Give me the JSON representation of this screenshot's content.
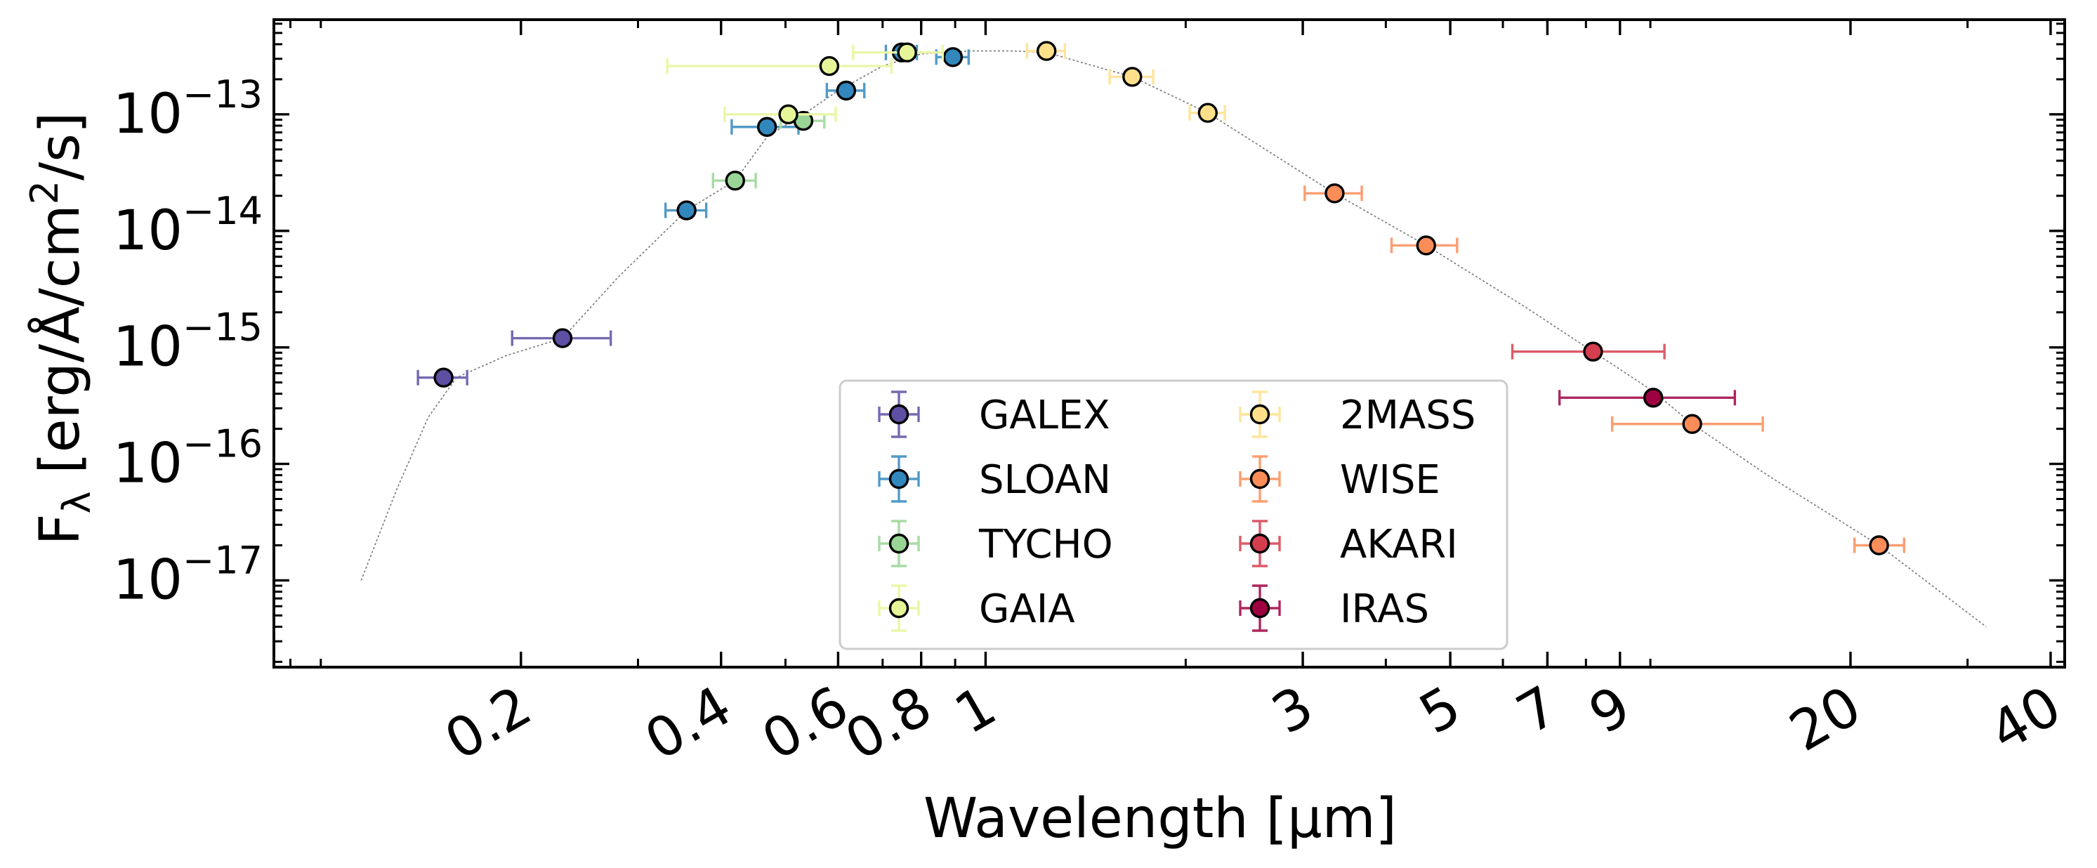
{
  "chart_data": {
    "type": "scatter",
    "title": "",
    "xlabel": "Wavelength [μm]",
    "ylabel": "F_λ [erg/Å/cm²/s]",
    "ylabel_main": "F",
    "ylabel_sub": "λ",
    "ylabel_rest1": " [erg/Å/cm",
    "ylabel_sup": "2",
    "ylabel_rest2": "/s]",
    "xscale": "log",
    "yscale": "log",
    "xlim": [
      0.085,
      42
    ],
    "ylim": [
      1.8e-18,
      6.5e-13
    ],
    "x_ticks": [
      {
        "value": 0.2,
        "label": "0.2"
      },
      {
        "value": 0.4,
        "label": "0.4"
      },
      {
        "value": 0.6,
        "label": "0.6"
      },
      {
        "value": 0.8,
        "label": "0.8"
      },
      {
        "value": 1,
        "label": "1"
      },
      {
        "value": 3,
        "label": "3"
      },
      {
        "value": 5,
        "label": "5"
      },
      {
        "value": 7,
        "label": "7"
      },
      {
        "value": 9,
        "label": "9"
      },
      {
        "value": 20,
        "label": "20"
      },
      {
        "value": 40,
        "label": "40"
      }
    ],
    "y_ticks": [
      {
        "value": 1e-13,
        "base": "10",
        "exp": "−13"
      },
      {
        "value": 1e-14,
        "base": "10",
        "exp": "−14"
      },
      {
        "value": 1e-15,
        "base": "10",
        "exp": "−15"
      },
      {
        "value": 1e-16,
        "base": "10",
        "exp": "−16"
      },
      {
        "value": 1e-17,
        "base": "10",
        "exp": "−17"
      }
    ],
    "legend_position": "lower-center",
    "series": [
      {
        "name": "GALEX",
        "color": "#5e4fa2",
        "points": [
          {
            "x": 0.153,
            "y": 5.5e-16,
            "xerr_lo": 0.013,
            "xerr_hi": 0.013
          },
          {
            "x": 0.231,
            "y": 1.2e-15,
            "xerr_lo": 0.037,
            "xerr_hi": 0.042
          }
        ]
      },
      {
        "name": "SLOAN",
        "color": "#3288bd",
        "points": [
          {
            "x": 0.355,
            "y": 1.5e-14,
            "xerr_lo": 0.025,
            "xerr_hi": 0.025
          },
          {
            "x": 0.469,
            "y": 7.8e-14,
            "xerr_lo": 0.054,
            "xerr_hi": 0.054
          },
          {
            "x": 0.617,
            "y": 1.6e-13,
            "xerr_lo": 0.04,
            "xerr_hi": 0.04
          },
          {
            "x": 0.748,
            "y": 3.4e-13,
            "xerr_lo": 0.04,
            "xerr_hi": 0.04
          },
          {
            "x": 0.893,
            "y": 3.1e-13,
            "xerr_lo": 0.05,
            "xerr_hi": 0.05
          }
        ]
      },
      {
        "name": "TYCHO",
        "color": "#99d594",
        "points": [
          {
            "x": 0.42,
            "y": 2.7e-14,
            "xerr_lo": 0.031,
            "xerr_hi": 0.031
          },
          {
            "x": 0.532,
            "y": 8.8e-14,
            "xerr_lo": 0.04,
            "xerr_hi": 0.04
          }
        ]
      },
      {
        "name": "GAIA",
        "color": "#e6f598",
        "points": [
          {
            "x": 0.505,
            "y": 1e-13,
            "xerr_lo": 0.1,
            "xerr_hi": 0.09
          },
          {
            "x": 0.582,
            "y": 2.6e-13,
            "xerr_lo": 0.25,
            "xerr_hi": 0.14
          },
          {
            "x": 0.762,
            "y": 3.4e-13,
            "xerr_lo": 0.13,
            "xerr_hi": 0.1
          }
        ]
      },
      {
        "name": "2MASS",
        "color": "#fee08b",
        "points": [
          {
            "x": 1.235,
            "y": 3.5e-13,
            "xerr_lo": 0.081,
            "xerr_hi": 0.081
          },
          {
            "x": 1.662,
            "y": 2.1e-13,
            "xerr_lo": 0.125,
            "xerr_hi": 0.125
          },
          {
            "x": 2.159,
            "y": 1.03e-13,
            "xerr_lo": 0.131,
            "xerr_hi": 0.131
          }
        ]
      },
      {
        "name": "WISE",
        "color": "#fc8d59",
        "points": [
          {
            "x": 3.35,
            "y": 2.1e-14,
            "xerr_lo": 0.33,
            "xerr_hi": 0.33
          },
          {
            "x": 4.6,
            "y": 7.5e-15,
            "xerr_lo": 0.52,
            "xerr_hi": 0.52
          },
          {
            "x": 11.56,
            "y": 2.2e-16,
            "xerr_lo": 2.8,
            "xerr_hi": 3.2
          },
          {
            "x": 22.08,
            "y": 2e-17,
            "xerr_lo": 1.8,
            "xerr_hi": 2.0
          }
        ]
      },
      {
        "name": "AKARI",
        "color": "#d53e4f",
        "points": [
          {
            "x": 8.2,
            "y": 9.2e-16,
            "xerr_lo": 2.0,
            "xerr_hi": 2.3
          }
        ]
      },
      {
        "name": "IRAS",
        "color": "#9e0142",
        "points": [
          {
            "x": 10.1,
            "y": 3.7e-16,
            "xerr_lo": 2.8,
            "xerr_hi": 3.3
          }
        ]
      }
    ],
    "model": {
      "name": "model",
      "x": [
        0.115,
        0.13,
        0.145,
        0.16,
        0.19,
        0.231,
        0.28,
        0.355,
        0.42,
        0.47,
        0.532,
        0.6,
        0.7,
        0.8,
        0.95,
        1.1,
        1.235,
        1.662,
        2.159,
        3.35,
        4.6,
        6.5,
        8.2,
        10.1,
        11.56,
        15,
        22.08,
        32
      ],
      "y": [
        1e-17,
        6e-17,
        2.5e-16,
        5.5e-16,
        8.5e-16,
        1.2e-15,
        4e-15,
        1.5e-14,
        2.7e-14,
        6.5e-14,
        1e-13,
        1.6e-13,
        2.6e-13,
        3.3e-13,
        3.5e-13,
        3.5e-13,
        3.4e-13,
        2.1e-13,
        1.03e-13,
        2.1e-14,
        7.5e-15,
        2.2e-15,
        9.2e-16,
        4.2e-16,
        2.2e-16,
        8e-17,
        2e-17,
        4e-18
      ]
    }
  }
}
